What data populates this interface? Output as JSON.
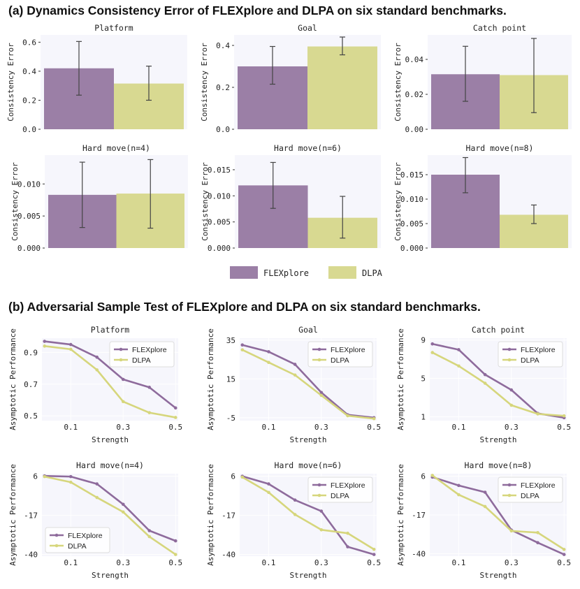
{
  "section_a": {
    "title": "(a) Dynamics Consistency Error of FLEXplore and DLPA on six standard benchmarks."
  },
  "section_b": {
    "title": "(b) Adversarial Sample Test of FLEXplore and DLPA on six standard benchmarks."
  },
  "colors": {
    "flexplore": "#9b7fa6",
    "dlpa": "#d8d991",
    "flexplore_line": "#8e6b9c",
    "dlpa_line": "#d6d67c",
    "plot_bg": "#f6f6fc",
    "error_bar": "#444444"
  },
  "shared_legend": {
    "items": [
      "FLEXplore",
      "DLPA"
    ]
  },
  "chart_data": [
    {
      "type": "bar",
      "title": "Platform",
      "ylabel": "Consistency Error",
      "categories": [
        "FLEXplore",
        "DLPA"
      ],
      "values": [
        0.42,
        0.315
      ],
      "errors": [
        [
          0.235,
          0.605
        ],
        [
          0.2,
          0.435
        ]
      ],
      "ylim": [
        0,
        0.65
      ],
      "yticks": [
        0.0,
        0.2,
        0.4,
        0.6
      ],
      "ytick_labels": [
        "0.0",
        "0.2",
        "0.4",
        "0.6"
      ]
    },
    {
      "type": "bar",
      "title": "Goal",
      "ylabel": "Consistency Error",
      "categories": [
        "FLEXplore",
        "DLPA"
      ],
      "values": [
        0.3,
        0.395
      ],
      "errors": [
        [
          0.215,
          0.395
        ],
        [
          0.355,
          0.44
        ]
      ],
      "ylim": [
        0,
        0.45
      ],
      "yticks": [
        0.0,
        0.2,
        0.4
      ],
      "ytick_labels": [
        "0.0",
        "0.2",
        "0.4"
      ]
    },
    {
      "type": "bar",
      "title": "Catch point",
      "ylabel": "Consistency Error",
      "categories": [
        "FLEXplore",
        "DLPA"
      ],
      "values": [
        0.0315,
        0.031
      ],
      "errors": [
        [
          0.016,
          0.0475
        ],
        [
          0.0095,
          0.052
        ]
      ],
      "ylim": [
        0,
        0.054
      ],
      "yticks": [
        0.0,
        0.02,
        0.04
      ],
      "ytick_labels": [
        "0.00",
        "0.02",
        "0.04"
      ]
    },
    {
      "type": "bar",
      "title": "Hard move(n=4)",
      "ylabel": "Consistency Error",
      "categories": [
        "FLEXplore",
        "DLPA"
      ],
      "values": [
        0.0083,
        0.0085
      ],
      "errors": [
        [
          0.0032,
          0.0134
        ],
        [
          0.0031,
          0.0138
        ]
      ],
      "ylim": [
        0,
        0.0145
      ],
      "yticks": [
        0.0,
        0.005,
        0.01
      ],
      "ytick_labels": [
        "0.000",
        "0.005",
        "0.010"
      ]
    },
    {
      "type": "bar",
      "title": "Hard move(n=6)",
      "ylabel": "Consistency Error",
      "categories": [
        "FLEXplore",
        "DLPA"
      ],
      "values": [
        0.012,
        0.0058
      ],
      "errors": [
        [
          0.0076,
          0.0164
        ],
        [
          0.0019,
          0.0099
        ]
      ],
      "ylim": [
        0,
        0.0178
      ],
      "yticks": [
        0.0,
        0.005,
        0.01,
        0.015
      ],
      "ytick_labels": [
        "0.000",
        "0.005",
        "0.010",
        "0.015"
      ]
    },
    {
      "type": "bar",
      "title": "Hard move(n=8)",
      "ylabel": "Consistency Error",
      "categories": [
        "FLEXplore",
        "DLPA"
      ],
      "values": [
        0.015,
        0.0068
      ],
      "errors": [
        [
          0.0113,
          0.0185
        ],
        [
          0.005,
          0.0088
        ]
      ],
      "ylim": [
        0,
        0.019
      ],
      "yticks": [
        0.0,
        0.005,
        0.01,
        0.015
      ],
      "ytick_labels": [
        "0.000",
        "0.005",
        "0.010",
        "0.015"
      ]
    },
    {
      "type": "line",
      "title": "Platform",
      "xlabel": "Strength",
      "ylabel": "Asymptotic Performance",
      "x": [
        0.0,
        0.1,
        0.2,
        0.3,
        0.4,
        0.5
      ],
      "series": [
        {
          "name": "FLEXplore",
          "values": [
            0.97,
            0.95,
            0.87,
            0.73,
            0.68,
            0.55
          ]
        },
        {
          "name": "DLPA",
          "values": [
            0.94,
            0.92,
            0.79,
            0.59,
            0.52,
            0.49
          ]
        }
      ],
      "xlim": [
        -0.01,
        0.51
      ],
      "ylim": [
        0.47,
        0.99
      ],
      "xticks": [
        0.1,
        0.3,
        0.5
      ],
      "xtick_labels": [
        "0.1",
        "0.3",
        "0.5"
      ],
      "yticks": [
        0.5,
        0.7,
        0.9
      ],
      "ytick_labels": [
        "0.5",
        "0.7",
        "0.9"
      ],
      "legend": "top-right"
    },
    {
      "type": "line",
      "title": "Goal",
      "xlabel": "Strength",
      "ylabel": "Asymptotic Performance",
      "x": [
        0.0,
        0.1,
        0.2,
        0.3,
        0.4,
        0.5
      ],
      "series": [
        {
          "name": "FLEXplore",
          "values": [
            32.5,
            29,
            22.5,
            8,
            -3.5,
            -5
          ]
        },
        {
          "name": "DLPA",
          "values": [
            30,
            23.5,
            17,
            6.5,
            -4,
            -5.5
          ]
        }
      ],
      "xlim": [
        -0.01,
        0.51
      ],
      "ylim": [
        -6.5,
        36
      ],
      "xticks": [
        0.1,
        0.3,
        0.5
      ],
      "xtick_labels": [
        "0.1",
        "0.3",
        "0.5"
      ],
      "yticks": [
        -5,
        15,
        35
      ],
      "ytick_labels": [
        "-5",
        "15",
        "35"
      ],
      "legend": "top-right"
    },
    {
      "type": "line",
      "title": "Catch point",
      "xlabel": "Strength",
      "ylabel": "Asymptotic Performance",
      "x": [
        0.0,
        0.1,
        0.2,
        0.3,
        0.4,
        0.5
      ],
      "series": [
        {
          "name": "FLEXplore",
          "values": [
            8.6,
            8.0,
            5.4,
            3.8,
            1.35,
            0.9
          ]
        },
        {
          "name": "DLPA",
          "values": [
            7.7,
            6.3,
            4.5,
            2.2,
            1.3,
            1.1
          ]
        }
      ],
      "xlim": [
        -0.01,
        0.51
      ],
      "ylim": [
        0.6,
        9.2
      ],
      "xticks": [
        0.1,
        0.3,
        0.5
      ],
      "xtick_labels": [
        "0.1",
        "0.3",
        "0.5"
      ],
      "yticks": [
        1,
        5,
        9
      ],
      "ytick_labels": [
        "1",
        "5",
        "9"
      ],
      "legend": "top-right"
    },
    {
      "type": "line",
      "title": "Hard move(n=4)",
      "xlabel": "Strength",
      "ylabel": "Asymptotic Performance",
      "x": [
        0.0,
        0.1,
        0.2,
        0.3,
        0.4,
        0.5
      ],
      "series": [
        {
          "name": "FLEXplore",
          "values": [
            6.2,
            5.8,
            1.5,
            -10.5,
            -26,
            -32
          ]
        },
        {
          "name": "DLPA",
          "values": [
            5.8,
            2.5,
            -6.5,
            -15,
            -29.5,
            -40
          ]
        }
      ],
      "xlim": [
        -0.01,
        0.51
      ],
      "ylim": [
        -41,
        7.5
      ],
      "xticks": [
        0.1,
        0.3,
        0.5
      ],
      "xtick_labels": [
        "0.1",
        "0.3",
        "0.5"
      ],
      "yticks": [
        -40,
        -17,
        6
      ],
      "ytick_labels": [
        "-40",
        "-17",
        "6"
      ],
      "legend": "bottom-left"
    },
    {
      "type": "line",
      "title": "Hard move(n=6)",
      "xlabel": "Strength",
      "ylabel": "Asymptotic Performance",
      "x": [
        0.0,
        0.1,
        0.2,
        0.3,
        0.4,
        0.5
      ],
      "series": [
        {
          "name": "FLEXplore",
          "values": [
            6.0,
            1.5,
            -8,
            -14.5,
            -35.5,
            -40
          ]
        },
        {
          "name": "DLPA",
          "values": [
            5.5,
            -3.5,
            -16.5,
            -25.5,
            -27.5,
            -37
          ]
        }
      ],
      "xlim": [
        -0.01,
        0.51
      ],
      "ylim": [
        -41,
        7.5
      ],
      "xticks": [
        0.1,
        0.3,
        0.5
      ],
      "xtick_labels": [
        "0.1",
        "0.3",
        "0.5"
      ],
      "yticks": [
        -40,
        -17,
        6
      ],
      "ytick_labels": [
        "-40",
        "-17",
        "6"
      ],
      "legend": "top-right"
    },
    {
      "type": "line",
      "title": "Hard move(n=8)",
      "xlabel": "Strength",
      "ylabel": "Asymptotic Performance",
      "x": [
        0.0,
        0.1,
        0.2,
        0.3,
        0.4,
        0.5
      ],
      "series": [
        {
          "name": "FLEXplore",
          "values": [
            5.5,
            0.5,
            -3.5,
            -26,
            -33.5,
            -40.5
          ]
        },
        {
          "name": "DLPA",
          "values": [
            6.5,
            -5,
            -12,
            -26.5,
            -27.5,
            -37.5
          ]
        }
      ],
      "xlim": [
        -0.01,
        0.51
      ],
      "ylim": [
        -41.5,
        7.5
      ],
      "xticks": [
        0.1,
        0.3,
        0.5
      ],
      "xtick_labels": [
        "0.1",
        "0.3",
        "0.5"
      ],
      "yticks": [
        -40,
        -17,
        6
      ],
      "ytick_labels": [
        "-40",
        "-17",
        "6"
      ],
      "legend": "top-right"
    }
  ]
}
